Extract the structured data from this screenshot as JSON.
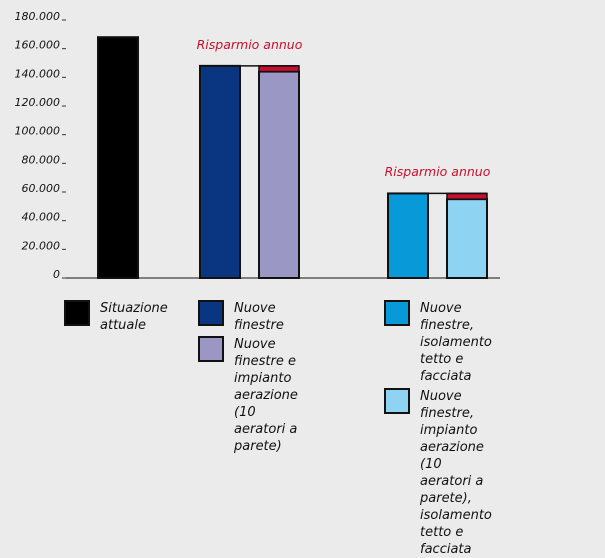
{
  "chart_data": {
    "type": "bar",
    "ylim": [
      0,
      180000
    ],
    "yticks": [
      "180.000",
      "160.000",
      "140.000",
      "120.000",
      "100.000",
      "80.000",
      "60.000",
      "40.000",
      "20.000",
      "0"
    ],
    "bars": [
      {
        "name": "Situazione attuale",
        "value": 168000,
        "color": "#000000"
      },
      {
        "name": "Nuove finestre",
        "value": 148000,
        "color": "#0a3580"
      },
      {
        "name": "Nuove finestre e impianto aerazione (10 aeratori a parete)",
        "value": 144000,
        "color": "#9b97c5"
      },
      {
        "name": "Nuove finestre, isolamento tetto e facciata",
        "value": 59000,
        "color": "#0899d9"
      },
      {
        "name": "Nuove finestre, impianto aerazione (10 aeratori a parete), isolamento tetto e facciata",
        "value": 55000,
        "color": "#8ed4f2"
      }
    ],
    "savings": [
      {
        "label": "Risparmio annuo",
        "from": 148000,
        "to": 144000
      },
      {
        "label": "Risparmio annuo",
        "from": 59000,
        "to": 55000
      }
    ],
    "savings_color": "#c8102e",
    "grid": false
  },
  "legend": [
    {
      "label": "Situazione\nattuale",
      "color": "#000000"
    },
    {
      "label": "Nuove finestre",
      "color": "#0a3580"
    },
    {
      "label": "Nuove finestre e\nimpianto aerazione\n(10 aeratori a parete)",
      "color": "#9b97c5"
    },
    {
      "label": "Nuove finestre, isolamento\ntetto e facciata",
      "color": "#0899d9"
    },
    {
      "label": "Nuove finestre, impianto\naerazione (10 aeratori a\nparete), isolamento tetto e\nfacciata",
      "color": "#8ed4f2"
    }
  ]
}
